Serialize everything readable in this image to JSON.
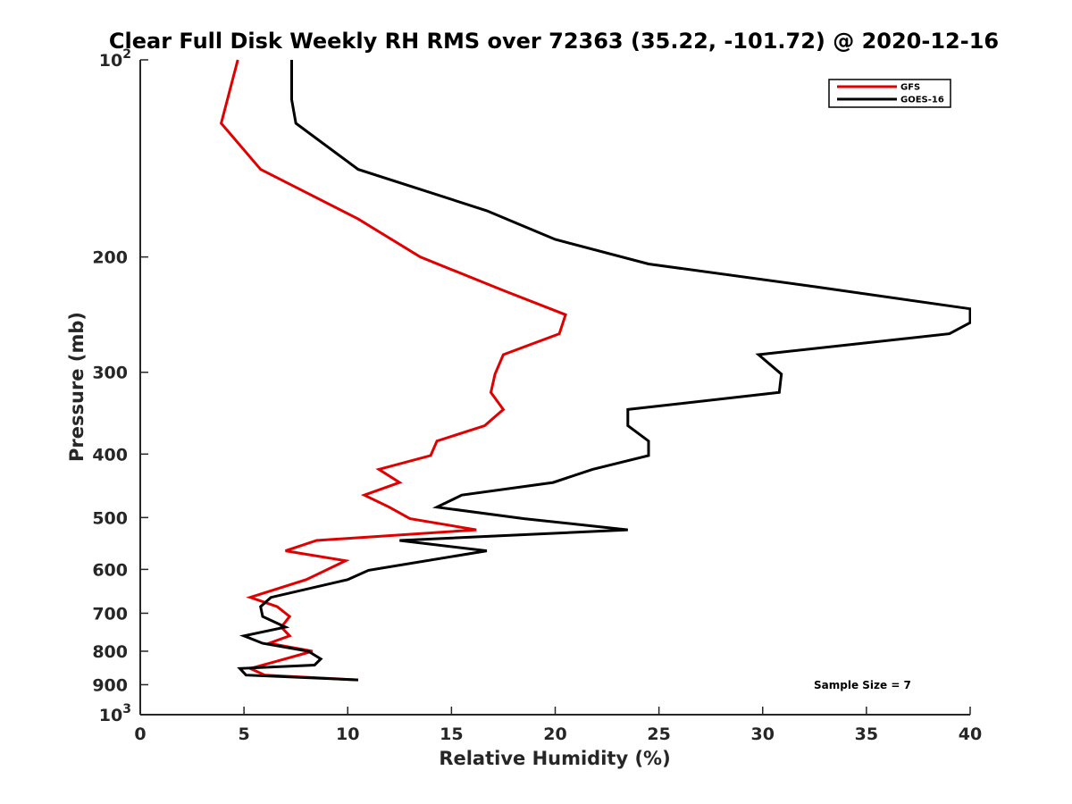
{
  "chart_data": {
    "type": "line",
    "title": "Clear Full Disk Weekly RH RMS over 72363 (35.22, -101.72) @ 2020-12-16",
    "xlabel": "Relative Humidity (%)",
    "ylabel": "Pressure (mb)",
    "xlim": [
      0,
      40
    ],
    "ylim": [
      100,
      1000
    ],
    "yscale": "log",
    "yreversed": false,
    "x_ticks": [
      "0",
      "5",
      "10",
      "15",
      "20",
      "25",
      "30",
      "35",
      "40"
    ],
    "x_tick_values": [
      0,
      5,
      10,
      15,
      20,
      25,
      30,
      35,
      40
    ],
    "y_ticks": [
      {
        "value": 100,
        "base": "10",
        "exp": "2",
        "label": ""
      },
      {
        "value": 200,
        "label": "200"
      },
      {
        "value": 300,
        "label": "300"
      },
      {
        "value": 400,
        "label": "400"
      },
      {
        "value": 500,
        "label": "500"
      },
      {
        "value": 600,
        "label": "600"
      },
      {
        "value": 700,
        "label": "700"
      },
      {
        "value": 800,
        "label": "800"
      },
      {
        "value": 900,
        "label": "900"
      },
      {
        "value": 1000,
        "base": "10",
        "exp": "3",
        "label": ""
      }
    ],
    "legend_position": "top-right",
    "annotation": "Sample Size = 7",
    "series": [
      {
        "name": "GFS",
        "color": "#e00000",
        "points": [
          [
            4.7,
            100
          ],
          [
            3.9,
            125
          ],
          [
            5.8,
            147
          ],
          [
            10.5,
            175
          ],
          [
            13.5,
            200
          ],
          [
            17.5,
            225
          ],
          [
            20.5,
            245
          ],
          [
            20.2,
            262
          ],
          [
            17.5,
            282
          ],
          [
            17.1,
            302
          ],
          [
            16.9,
            322
          ],
          [
            17.5,
            342
          ],
          [
            16.6,
            362
          ],
          [
            14.3,
            382
          ],
          [
            14.0,
            402
          ],
          [
            11.5,
            422
          ],
          [
            12.5,
            442
          ],
          [
            10.8,
            462
          ],
          [
            12.0,
            482
          ],
          [
            13.0,
            502
          ],
          [
            16.2,
            522
          ],
          [
            8.5,
            542
          ],
          [
            7.0,
            562
          ],
          [
            9.9,
            582
          ],
          [
            8.0,
            622
          ],
          [
            5.3,
            662
          ],
          [
            6.6,
            684
          ],
          [
            7.2,
            708
          ],
          [
            6.8,
            735
          ],
          [
            7.2,
            758
          ],
          [
            6.2,
            778
          ],
          [
            8.3,
            800
          ],
          [
            6.5,
            830
          ],
          [
            5.3,
            850
          ],
          [
            6.0,
            870
          ],
          [
            10.5,
            885
          ]
        ]
      },
      {
        "name": "GOES-16",
        "color": "#000000",
        "points": [
          [
            7.3,
            100
          ],
          [
            7.3,
            115
          ],
          [
            7.5,
            125
          ],
          [
            10.5,
            147
          ],
          [
            16.7,
            170
          ],
          [
            20.0,
            188
          ],
          [
            24.5,
            205
          ],
          [
            32.5,
            222
          ],
          [
            40.0,
            240
          ],
          [
            40.0,
            252
          ],
          [
            39.0,
            262
          ],
          [
            29.8,
            282
          ],
          [
            30.9,
            302
          ],
          [
            30.8,
            322
          ],
          [
            23.5,
            342
          ],
          [
            23.5,
            362
          ],
          [
            24.5,
            382
          ],
          [
            24.5,
            402
          ],
          [
            21.8,
            422
          ],
          [
            19.9,
            442
          ],
          [
            15.5,
            462
          ],
          [
            14.3,
            482
          ],
          [
            18.5,
            502
          ],
          [
            23.5,
            522
          ],
          [
            12.5,
            542
          ],
          [
            16.7,
            562
          ],
          [
            11.0,
            602
          ],
          [
            10.0,
            622
          ],
          [
            6.3,
            662
          ],
          [
            5.8,
            684
          ],
          [
            5.9,
            708
          ],
          [
            7.0,
            735
          ],
          [
            5.0,
            758
          ],
          [
            5.9,
            778
          ],
          [
            8.1,
            800
          ],
          [
            8.7,
            822
          ],
          [
            8.4,
            840
          ],
          [
            4.8,
            850
          ],
          [
            5.1,
            870
          ],
          [
            10.5,
            885
          ]
        ]
      }
    ]
  }
}
